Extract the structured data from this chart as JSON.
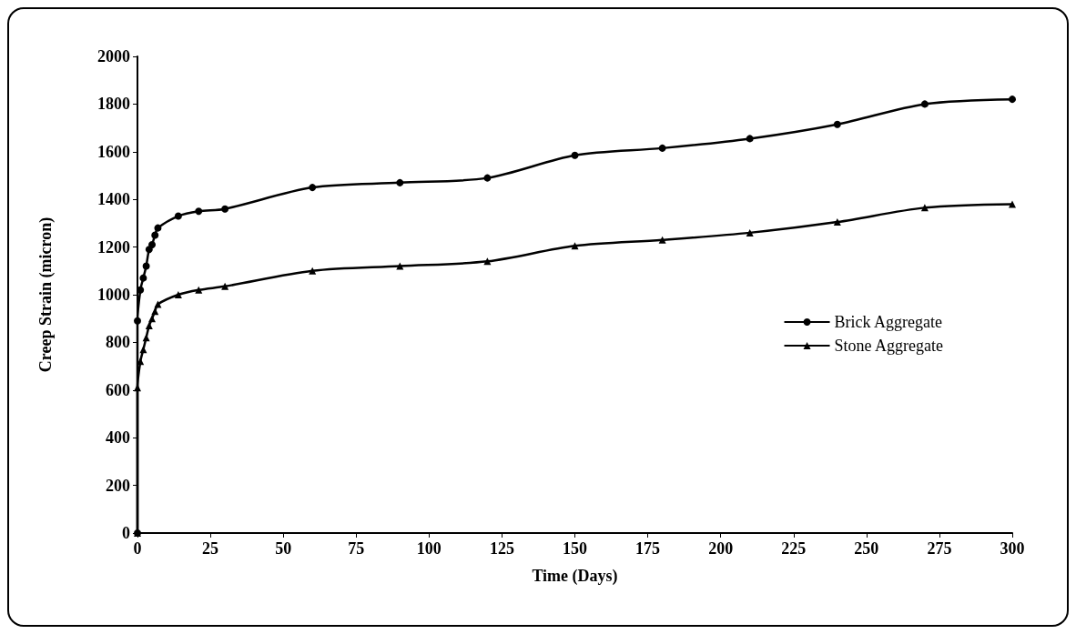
{
  "chart_data": {
    "type": "line",
    "xlabel": "Time (Days)",
    "ylabel": "Creep Strain (micron)",
    "xlim": [
      0,
      300
    ],
    "xticks": [
      0,
      25,
      50,
      75,
      100,
      125,
      150,
      175,
      200,
      225,
      250,
      275,
      300
    ],
    "ylim": [
      0,
      2000
    ],
    "yticks": [
      0,
      200,
      400,
      600,
      800,
      1000,
      1200,
      1400,
      1600,
      1800,
      2000
    ],
    "grid": false,
    "legend": "right",
    "line_style": "solid",
    "series": [
      {
        "name": "Brick Aggregate",
        "color": "#000000",
        "marker": "circle",
        "x": [
          0,
          0,
          1,
          2,
          3,
          4,
          5,
          6,
          7,
          14,
          21,
          30,
          60,
          90,
          120,
          150,
          180,
          210,
          240,
          270,
          300
        ],
        "values": [
          0,
          890,
          1020,
          1070,
          1120,
          1190,
          1210,
          1250,
          1280,
          1330,
          1350,
          1360,
          1450,
          1470,
          1490,
          1585,
          1615,
          1655,
          1715,
          1800,
          1820
        ]
      },
      {
        "name": "Stone Aggregate",
        "color": "#000000",
        "marker": "triangle",
        "x": [
          0,
          0,
          1,
          2,
          3,
          4,
          5,
          6,
          7,
          14,
          21,
          30,
          60,
          90,
          120,
          150,
          180,
          210,
          240,
          270,
          300
        ],
        "values": [
          0,
          610,
          720,
          770,
          820,
          870,
          900,
          930,
          960,
          1000,
          1020,
          1035,
          1100,
          1120,
          1140,
          1205,
          1230,
          1260,
          1305,
          1365,
          1380
        ]
      }
    ]
  }
}
